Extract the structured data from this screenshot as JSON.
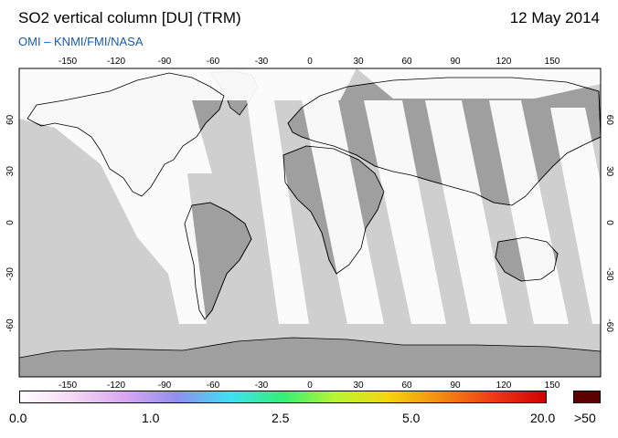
{
  "header": {
    "title": "SO2 vertical column [DU] (TRM)",
    "date": "12 May 2014",
    "credit": "OMI  –  KNMI/FMI/NASA"
  },
  "map": {
    "projection": "equirectangular",
    "lon_range": [
      -180,
      180
    ],
    "lat_range": [
      -90,
      90
    ],
    "lon_ticks": [
      "-150",
      "-120",
      "-90",
      "-60",
      "-30",
      "0",
      "30",
      "60",
      "90",
      "120",
      "150"
    ],
    "lat_ticks": [
      "60",
      "30",
      "0",
      "-30",
      "-60"
    ],
    "colors": {
      "land_no_data": "#9f9f9f",
      "sea_no_data": "#cfcfcf",
      "retrieval_background": "#ffffff",
      "coastline": "#000000"
    }
  },
  "colorbar": {
    "labels": [
      "0.0",
      "1.0",
      "2.5",
      "5.0",
      "20.0",
      ">50"
    ],
    "stops": [
      "#ffffff",
      "#f4d8f4",
      "#d9a6f0",
      "#8f8fef",
      "#3fe0f4",
      "#33f077",
      "#b8f533",
      "#f6d510",
      "#f28b12",
      "#ee3a16",
      "#d20000"
    ],
    "overflow_color": "#5a0000"
  }
}
